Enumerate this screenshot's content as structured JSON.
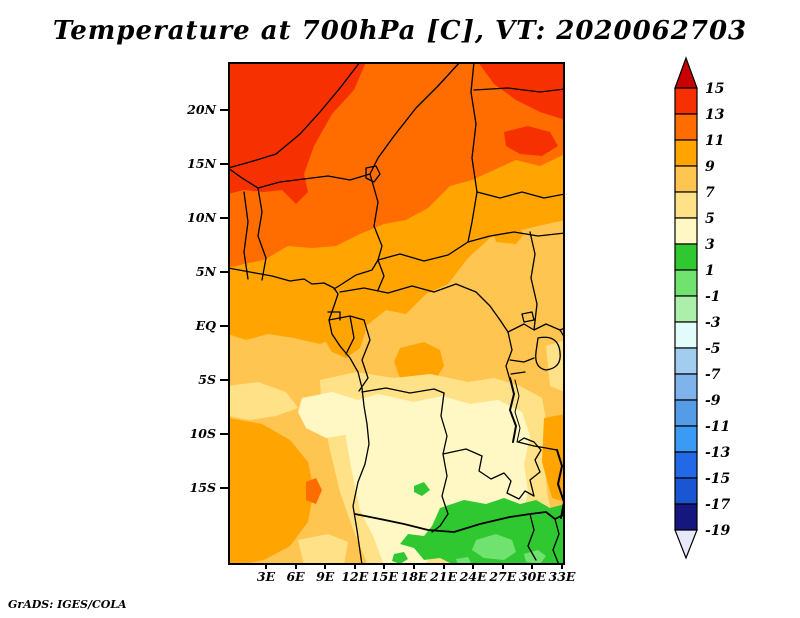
{
  "page": {
    "background": "#FFFFFF",
    "frame_color": "#000000"
  },
  "title": "Temperature at 700hPa [C], VT: 2020062703",
  "attribution": "GrADS: IGES/COLA",
  "axes": {
    "lat_labels": [
      "20N",
      "15N",
      "10N",
      "5N",
      "EQ",
      "5S",
      "10S",
      "15S"
    ],
    "lon_labels": [
      "3E",
      "6E",
      "9E",
      "12E",
      "15E",
      "18E",
      "21E",
      "24E",
      "27E",
      "30E",
      "33E"
    ]
  },
  "colorbar": {
    "boundary_labels_top_to_bottom": [
      "15",
      "13",
      "11",
      "9",
      "7",
      "5",
      "3",
      "1",
      "-1",
      "-3",
      "-5",
      "-7",
      "-9",
      "-11",
      "-13",
      "-15",
      "-17",
      "-19"
    ],
    "cells_top_to_bottom": [
      "13..15",
      "11..13",
      "9..11",
      "7..9",
      "5..7",
      "3..5",
      "1..3",
      "-1..1",
      "-3..-1",
      "-5..-3",
      "-7..-5",
      "-9..-7",
      "-11..-9",
      "-13..-11",
      "-15..-13",
      "-17..-15",
      "-19..-17"
    ],
    "arrow_top_range": ">15",
    "arrow_bottom_range": "<-19"
  },
  "chart_data": {
    "type": "heatmap",
    "title": "Temperature at 700hPa [C], VT: 2020062703",
    "variable": "Temperature",
    "pressure_level": "700hPa",
    "units": "C",
    "valid_time": "2020062703",
    "renderer_credit": "GrADS: IGES/COLA",
    "map_region": "Central Africa",
    "x_ticks": [
      "3E",
      "6E",
      "9E",
      "12E",
      "15E",
      "18E",
      "21E",
      "24E",
      "27E",
      "30E",
      "33E"
    ],
    "y_ticks": [
      "20N",
      "15N",
      "10N",
      "5N",
      "EQ",
      "5S",
      "10S",
      "15S"
    ],
    "contour_levels_c": [
      -19,
      -17,
      -15,
      -13,
      -11,
      -9,
      -7,
      -5,
      -3,
      -1,
      1,
      3,
      5,
      7,
      9,
      11,
      13,
      15
    ],
    "legend_position": "right",
    "grid": false,
    "palette": [
      {
        "range": ">15",
        "color": "#C80000"
      },
      {
        "range": "13..15",
        "color": "#F73000"
      },
      {
        "range": "11..13",
        "color": "#FF6D00"
      },
      {
        "range": "9..11",
        "color": "#FFA400"
      },
      {
        "range": "7..9",
        "color": "#FFC550"
      },
      {
        "range": "5..7",
        "color": "#FFE288"
      },
      {
        "range": "3..5",
        "color": "#FFF8C5"
      },
      {
        "range": "1..3",
        "color": "#30C831"
      },
      {
        "range": "-1..1",
        "color": "#6FE26F"
      },
      {
        "range": "-3..-1",
        "color": "#ABEFAB"
      },
      {
        "range": "-5..-3",
        "color": "#E2FBFB"
      },
      {
        "range": "-7..-5",
        "color": "#A3CDEF"
      },
      {
        "range": "-9..-7",
        "color": "#7EB3EB"
      },
      {
        "range": "-11..-9",
        "color": "#549CE7"
      },
      {
        "range": "-13..-11",
        "color": "#3B9AF3"
      },
      {
        "range": "-15..-13",
        "color": "#2268E7"
      },
      {
        "range": "-17..-15",
        "color": "#1C55D1"
      },
      {
        "range": "-19..-17",
        "color": "#16167F"
      },
      {
        "range": "<-19",
        "color": "#E8E8FB"
      }
    ],
    "approx_grid_c": {
      "lons": [
        "3E",
        "6E",
        "9E",
        "12E",
        "15E",
        "18E",
        "21E",
        "24E",
        "27E",
        "30E",
        "33E"
      ],
      "lats": [
        "20N",
        "15N",
        "10N",
        "5N",
        "EQ",
        "5S",
        "10S",
        "15S"
      ],
      "values": [
        [
          14,
          14,
          14,
          13,
          12,
          12,
          12,
          12,
          13,
          14,
          14
        ],
        [
          14,
          13,
          13,
          12,
          12,
          12,
          12,
          12,
          12,
          12,
          12
        ],
        [
          12,
          12,
          11,
          11,
          10,
          10,
          10,
          10,
          10,
          10,
          10
        ],
        [
          10,
          10,
          10,
          10,
          9,
          9,
          9,
          8,
          8,
          8,
          8
        ],
        [
          8,
          8,
          9,
          9,
          8,
          8,
          8,
          8,
          8,
          8,
          8
        ],
        [
          8,
          8,
          8,
          7,
          7,
          6,
          7,
          7,
          7,
          8,
          8
        ],
        [
          9,
          10,
          9,
          7,
          5,
          4,
          4,
          4,
          5,
          6,
          7
        ],
        [
          9,
          10,
          8,
          6,
          4,
          4,
          3,
          2,
          2,
          2,
          4
        ]
      ]
    }
  }
}
